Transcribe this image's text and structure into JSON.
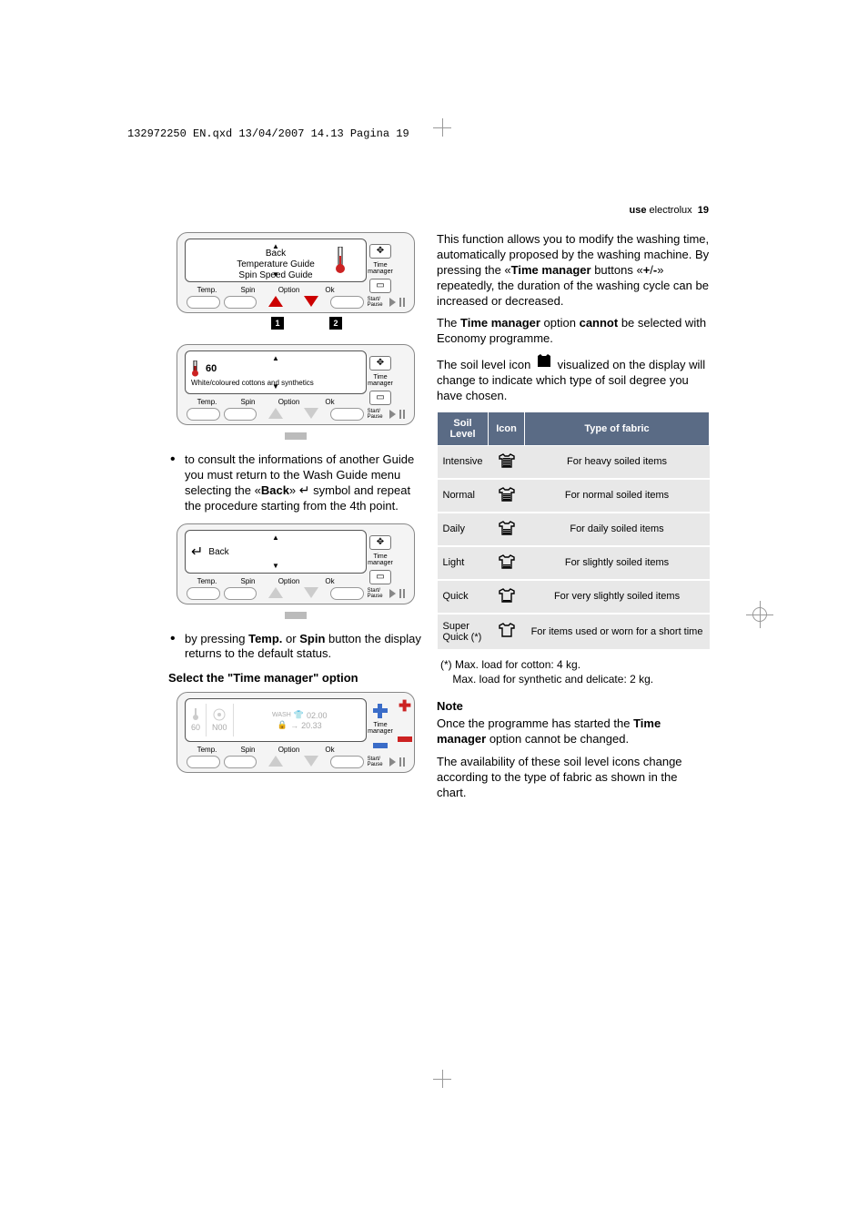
{
  "doc_header": "132972250 EN.qxd  13/04/2007  14.13  Pagina 19",
  "page_header": {
    "label_use": "use",
    "brand": "electrolux",
    "page_num": "19"
  },
  "panel1": {
    "screen_lines": [
      "Back",
      "Temperature Guide",
      "Spin Speed Guide"
    ],
    "side_label": "Time manager",
    "labels": [
      "Temp.",
      "Spin",
      "Option",
      "Ok"
    ],
    "start_label": "Start/\nPause",
    "badge1": "1",
    "badge2": "2"
  },
  "panel2": {
    "temp": "60",
    "desc": "White/coloured cottons and synthetics",
    "side_label": "Time manager",
    "labels": [
      "Temp.",
      "Spin",
      "Option",
      "Ok"
    ],
    "start_label": "Start/\nPause"
  },
  "bullet1_a": "to consult the informations of another Guide you must return to the Wash Guide menu selecting the «",
  "bullet1_b": "Back",
  "bullet1_c": "» ",
  "bullet1_d": " symbol and repeat the procedure starting from the 4th point.",
  "panel3": {
    "back": "Back",
    "side_label": "Time manager",
    "labels": [
      "Temp.",
      "Spin",
      "Option",
      "Ok"
    ],
    "start_label": "Start/\nPause"
  },
  "bullet2_a": "by pressing ",
  "bullet2_b": "Temp.",
  "bullet2_c": " or ",
  "bullet2_d": "Spin",
  "bullet2_e": " button the display returns to the default status.",
  "section_title": "Select the \"Time manager\" option",
  "panel4": {
    "temp": "60",
    "spin": "N00",
    "wash": "WASH",
    "time1": "02.00",
    "time2": "20.33",
    "side_label": "Time manager",
    "labels": [
      "Temp.",
      "Spin",
      "Option",
      "Ok"
    ],
    "start_label": "Start/\nPause"
  },
  "right": {
    "p1": "This function allows you to modify the washing time, automatically proposed by the washing machine. By pressing the «",
    "p1b": "Time manager",
    "p1c": " buttons «",
    "p1d": "+",
    "p1e": "/",
    "p1f": "-",
    "p1g": "» repeatedly, the duration of the washing cycle can be increased or decreased.",
    "p2a": "The ",
    "p2b": "Time manager",
    "p2c": " option ",
    "p2d": "cannot",
    "p2e": " be selected with Economy programme.",
    "p3a": "The soil level icon ",
    "p3b": " visualized on the display will change to indicate which type of soil degree you have chosen.",
    "table": {
      "h1": "Soil Level",
      "h2": "Icon",
      "h3": "Type of fabric",
      "rows": [
        {
          "level": "Intensive",
          "fill": 5,
          "desc": "For heavy soiled items"
        },
        {
          "level": "Normal",
          "fill": 4,
          "desc": "For normal soiled items"
        },
        {
          "level": "Daily",
          "fill": 3,
          "desc": "For daily soiled items"
        },
        {
          "level": "Light",
          "fill": 2,
          "desc": "For slightly soiled items"
        },
        {
          "level": "Quick",
          "fill": 1,
          "desc": "For very slightly soiled items"
        },
        {
          "level": "Super Quick (*)",
          "fill": 0,
          "desc": "For items used or worn for a short time"
        }
      ]
    },
    "footnote": "(*) Max. load for cotton: 4 kg.\nMax. load for synthetic and delicate: 2 kg.",
    "note_title": "Note",
    "note_p1a": "Once the programme has started the ",
    "note_p1b": "Time manager",
    "note_p1c": " option cannot be changed.",
    "note_p2": "The availability of these soil level icons change according to the type of fabric as shown in the chart."
  }
}
